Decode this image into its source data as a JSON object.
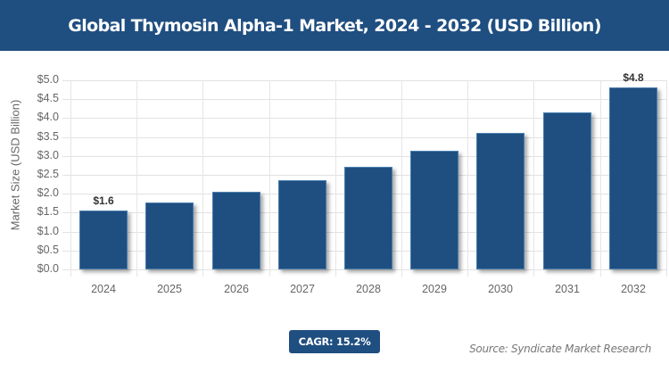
{
  "header": {
    "title": "Global Thymosin Alpha-1 Market, 2024 - 2032 (USD Billion)"
  },
  "chart_data": {
    "type": "bar",
    "title": "Global Thymosin Alpha-1 Market, 2024 - 2032 (USD Billion)",
    "xlabel": "",
    "ylabel": "Market Size (USD Billion)",
    "categories": [
      "2024",
      "2025",
      "2026",
      "2027",
      "2028",
      "2029",
      "2030",
      "2031",
      "2032"
    ],
    "values": [
      1.55,
      1.78,
      2.05,
      2.36,
      2.72,
      3.13,
      3.62,
      4.16,
      4.8
    ],
    "ylim": [
      0,
      5.0
    ],
    "yticks": [
      "$0.0",
      "$0.5",
      "$1.0",
      "$1.5",
      "$2.0",
      "$2.5",
      "$3.0",
      "$3.5",
      "$4.0",
      "$4.5",
      "$5.0"
    ],
    "data_labels": [
      {
        "index": 0,
        "text": "$1.6"
      },
      {
        "index": 8,
        "text": "$4.8"
      }
    ],
    "grid": true,
    "bar_color": "#1f4e80"
  },
  "footer": {
    "cagr": "CAGR: 15.2%",
    "source": "Source: Syndicate Market Research"
  },
  "colors": {
    "brand": "#1f4e80"
  }
}
